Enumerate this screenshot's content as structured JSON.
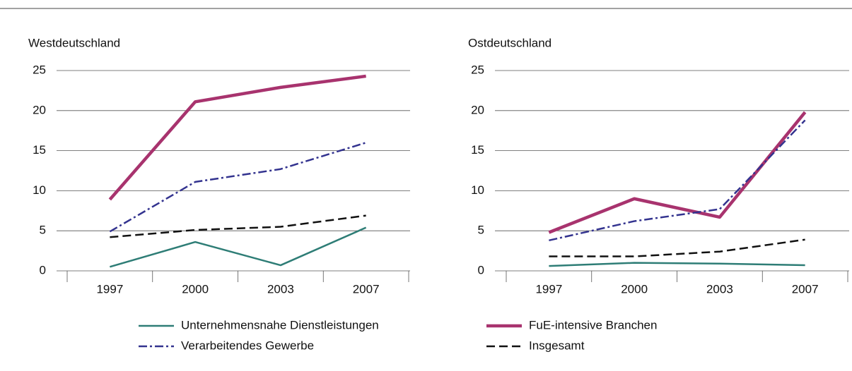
{
  "chart_data": [
    {
      "type": "line",
      "title": "Westdeutschland",
      "categories": [
        "1997",
        "2000",
        "2003",
        "2007"
      ],
      "ylim": [
        0,
        25
      ],
      "yticks": [
        0,
        5,
        10,
        15,
        20,
        25
      ],
      "grid": true,
      "series": [
        {
          "name": "Unternehmensnahe Dienstleistungen",
          "color": "#2e7d76",
          "dash": "solid",
          "values": [
            0.5,
            3.6,
            0.7,
            5.4
          ]
        },
        {
          "name": "FuE-intensive Branchen",
          "color": "#a8336e",
          "dash": "solid-thick",
          "values": [
            8.9,
            21.1,
            22.9,
            24.3
          ]
        },
        {
          "name": "Verarbeitendes Gewerbe",
          "color": "#33338f",
          "dash": "dashdot",
          "values": [
            4.9,
            11.1,
            12.7,
            16.0
          ]
        },
        {
          "name": "Insgesamt",
          "color": "#111111",
          "dash": "dashed",
          "values": [
            4.2,
            5.1,
            5.5,
            6.9
          ]
        }
      ]
    },
    {
      "type": "line",
      "title": "Ostdeutschland",
      "categories": [
        "1997",
        "2000",
        "2003",
        "2007"
      ],
      "ylim": [
        0,
        25
      ],
      "yticks": [
        0,
        5,
        10,
        15,
        20,
        25
      ],
      "grid": true,
      "series": [
        {
          "name": "Unternehmensnahe Dienstleistungen",
          "color": "#2e7d76",
          "dash": "solid",
          "values": [
            0.6,
            1.0,
            0.9,
            0.7
          ]
        },
        {
          "name": "FuE-intensive Branchen",
          "color": "#a8336e",
          "dash": "solid-thick",
          "values": [
            4.8,
            9.0,
            6.7,
            19.8
          ]
        },
        {
          "name": "Verarbeitendes Gewerbe",
          "color": "#33338f",
          "dash": "dashdot",
          "values": [
            3.8,
            6.2,
            7.7,
            18.8
          ]
        },
        {
          "name": "Insgesamt",
          "color": "#111111",
          "dash": "dashed",
          "values": [
            1.8,
            1.8,
            2.4,
            3.9
          ]
        }
      ]
    }
  ]
}
